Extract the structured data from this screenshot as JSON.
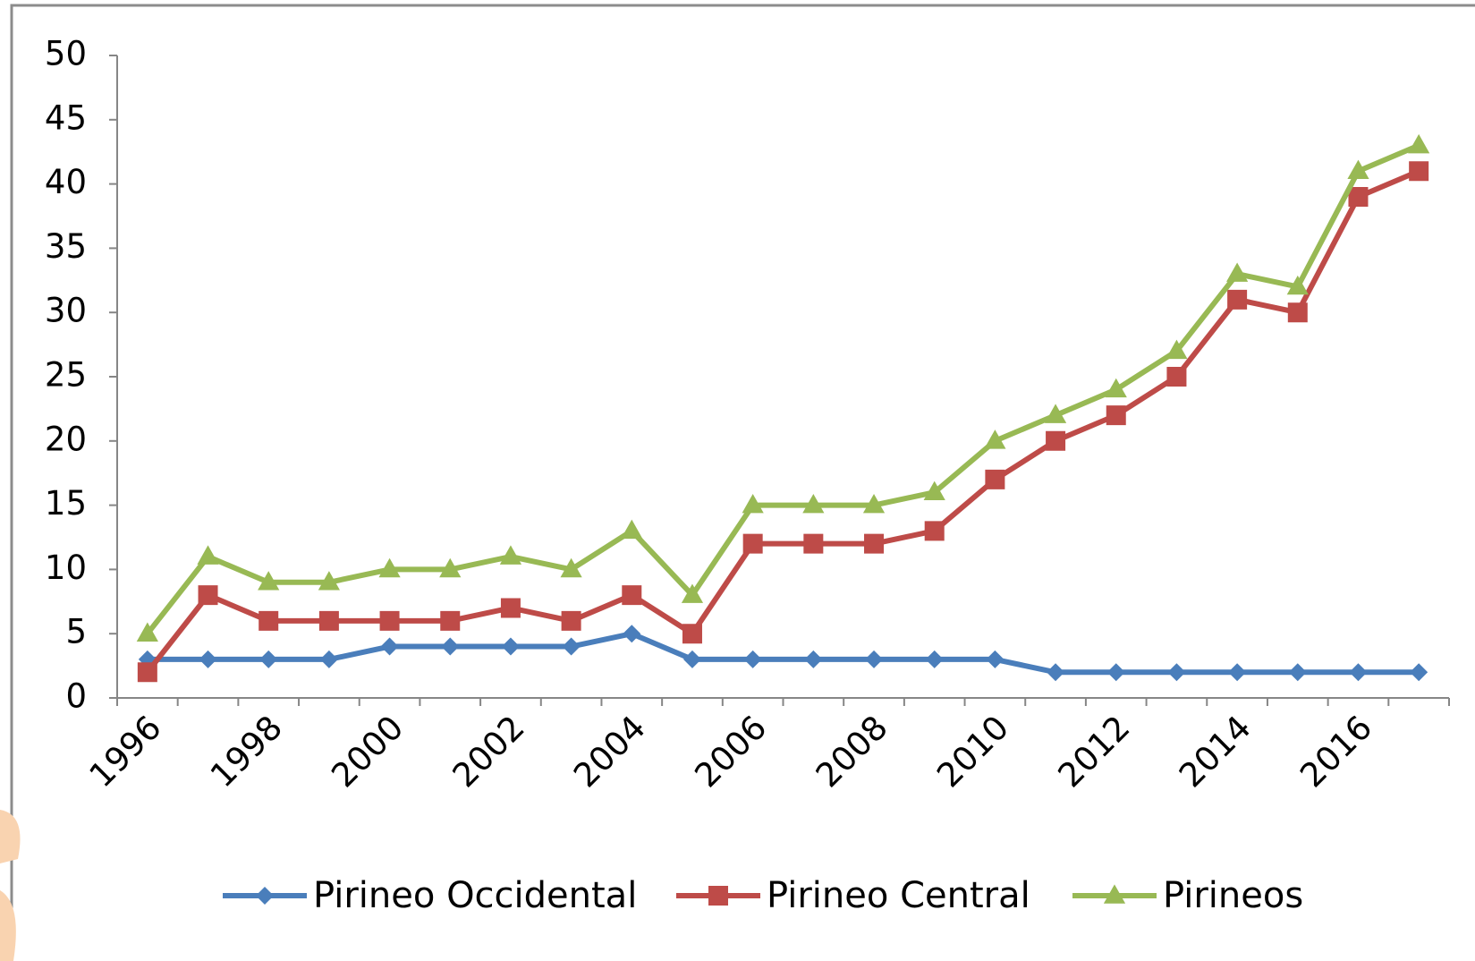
{
  "chart_data": {
    "type": "line",
    "categories": [
      "1996",
      null,
      "1998",
      null,
      "2000",
      null,
      "2002",
      null,
      "2004",
      null,
      "2006",
      null,
      "2008",
      null,
      "2010",
      null,
      "2012",
      null,
      "2014",
      null,
      "2016",
      null
    ],
    "series": [
      {
        "name": "Pirineo Occidental",
        "color": "#4a7ebb",
        "marker": "diamond",
        "values": [
          3,
          3,
          3,
          3,
          4,
          4,
          4,
          4,
          5,
          3,
          3,
          3,
          3,
          3,
          3,
          2,
          2,
          2,
          2,
          2,
          2,
          2
        ]
      },
      {
        "name": "Pirineo Central",
        "color": "#be4b48",
        "marker": "square",
        "values": [
          2,
          8,
          6,
          6,
          6,
          6,
          7,
          6,
          8,
          5,
          12,
          12,
          12,
          13,
          17,
          20,
          22,
          25,
          31,
          30,
          39,
          41
        ]
      },
      {
        "name": "Pirineos",
        "color": "#98b954",
        "marker": "triangle",
        "values": [
          5,
          11,
          9,
          9,
          10,
          10,
          11,
          10,
          13,
          8,
          15,
          15,
          15,
          16,
          20,
          22,
          24,
          27,
          33,
          32,
          41,
          43
        ]
      }
    ],
    "ylim": [
      0,
      50
    ],
    "yticks": [
      0,
      5,
      10,
      15,
      20,
      25,
      30,
      35,
      40,
      45,
      50
    ],
    "grid": false,
    "legend": "bottom"
  }
}
